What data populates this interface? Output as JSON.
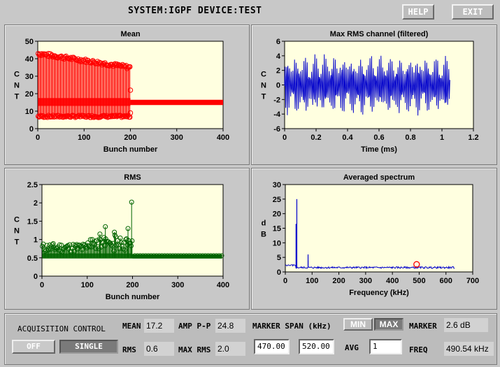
{
  "header": {
    "title": "SYSTEM:IGPF DEVICE:TEST",
    "help_label": "HELP",
    "exit_label": "EXIT"
  },
  "colors": {
    "mean": "#ff0000",
    "rms": "#006400",
    "rms_channel": "#0000cc",
    "spectrum": "#0000cc",
    "plot_bg": "#ffffe0"
  },
  "plots": {
    "mean": {
      "title": "Mean",
      "xlabel": "Bunch number",
      "ylabel": "CNT",
      "xticks": [
        "0",
        "100",
        "200",
        "300",
        "400"
      ],
      "yticks": [
        "0",
        "10",
        "20",
        "30",
        "40",
        "50"
      ]
    },
    "maxrms": {
      "title": "Max RMS channel (filtered)",
      "xlabel": "Time (ms)",
      "ylabel": "CNT",
      "xticks": [
        "0",
        "0.2",
        "0.4",
        "0.6",
        "0.8",
        "1",
        "1.2"
      ],
      "yticks": [
        "-6",
        "-4",
        "-2",
        "0",
        "2",
        "4",
        "6"
      ]
    },
    "rms": {
      "title": "RMS",
      "xlabel": "Bunch number",
      "ylabel": "CNT",
      "xticks": [
        "0",
        "100",
        "200",
        "300",
        "400"
      ],
      "yticks": [
        "0",
        "0.5",
        "1",
        "1.5",
        "2",
        "2.5"
      ]
    },
    "spectrum": {
      "title": "Averaged spectrum",
      "xlabel": "Frequency (kHz)",
      "ylabel": "dB",
      "xticks": [
        "0",
        "100",
        "200",
        "300",
        "400",
        "500",
        "600",
        "700"
      ],
      "yticks": [
        "0",
        "5",
        "10",
        "15",
        "20",
        "25",
        "30"
      ]
    }
  },
  "chart_data": [
    {
      "type": "scatter",
      "title": "Mean",
      "xlabel": "Bunch number",
      "ylabel": "CNT",
      "xlim": [
        0,
        400
      ],
      "ylim": [
        0,
        50
      ],
      "series": [
        {
          "values_desc": "bunches 0-200 alternate ~42 and ~7 (decaying high values to ~33), bunches 200-400 ~15"
        }
      ],
      "segments": [
        {
          "x": [
            1,
            200
          ],
          "high_start": 43,
          "high_end": 35,
          "low": 7,
          "mid": 15
        },
        {
          "x": [
            200,
            400
          ],
          "value": 15
        }
      ]
    },
    {
      "type": "line",
      "title": "Max RMS channel (filtered)",
      "xlabel": "Time (ms)",
      "ylabel": "CNT",
      "xlim": [
        0,
        1.2
      ],
      "ylim": [
        -6,
        6
      ],
      "x_end": 1.05,
      "amplitude": 4
    },
    {
      "type": "scatter",
      "title": "RMS",
      "xlabel": "Bunch number",
      "ylabel": "CNT",
      "xlim": [
        0,
        400
      ],
      "ylim": [
        0,
        2.5
      ],
      "peaks": [
        {
          "x": 198,
          "y": 2.02
        },
        {
          "x": 140,
          "y": 1.35
        },
        {
          "x": 128,
          "y": 1.15
        },
        {
          "x": 190,
          "y": 1.3
        },
        {
          "x": 160,
          "y": 1.2
        }
      ],
      "baseline": 0.55
    },
    {
      "type": "line",
      "title": "Averaged spectrum",
      "xlabel": "Frequency (kHz)",
      "ylabel": "dB",
      "xlim": [
        0,
        700
      ],
      "ylim": [
        0,
        30
      ],
      "peaks": [
        {
          "x": 43,
          "y": 25
        },
        {
          "x": 40,
          "y": 16.5
        },
        {
          "x": 85,
          "y": 6
        },
        {
          "x": 85,
          "y": 4
        }
      ],
      "floor": 1.5,
      "marker": {
        "x": 490.5,
        "y": 2.6
      }
    }
  ],
  "control": {
    "section_label": "ACQUISITION CONTROL",
    "off_label": "OFF",
    "single_label": "SINGLE",
    "mean_label": "MEAN",
    "mean_value": "17.2",
    "amp_label": "AMP P-P",
    "amp_value": "24.8",
    "rms_label": "RMS",
    "rms_value": "0.6",
    "maxrms_label": "MAX RMS",
    "maxrms_value": "2.0",
    "span_label": "MARKER SPAN (kHz)",
    "span_from": "470.00",
    "span_to": "520.00",
    "min_label": "MIN",
    "max_label": "MAX",
    "avg_label": "AVG",
    "avg_value": "1",
    "marker_label": "MARKER",
    "marker_value": "2.6 dB",
    "freq_label": "FREQ",
    "freq_value": "490.54 kHz"
  }
}
